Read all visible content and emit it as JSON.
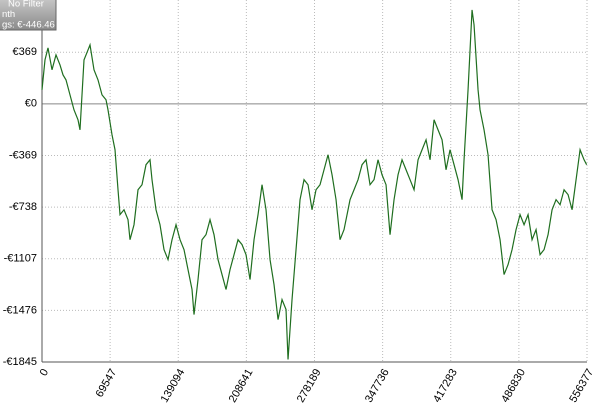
{
  "chart_data": {
    "type": "line",
    "overlay_text": [
      "No Filter",
      "nth",
      "gs: €-446.46"
    ],
    "x": [
      0,
      3063,
      6126,
      10210,
      14294,
      18378,
      21441,
      24504,
      28588,
      32672,
      36756,
      38798,
      42882,
      46966,
      49008,
      53092,
      57176,
      61260,
      65344,
      67386,
      71470,
      74533,
      77596,
      79638,
      83722,
      87806,
      89848,
      93932,
      98016,
      102100,
      106184,
      110268,
      112310,
      116394,
      120478,
      124562,
      128646,
      132730,
      136814,
      140898,
      144982,
      149066,
      153150,
      155192,
      159276,
      163360,
      167444,
      171528,
      175612,
      179696,
      183780,
      187864,
      191948,
      196032,
      200116,
      204200,
      208284,
      212368,
      216452,
      220536,
      224620,
      228704,
      232788,
      236872,
      240956,
      245040,
      249124,
      251166,
      255250,
      259334,
      263418,
      267502,
      271586,
      275670,
      279754,
      283838,
      287922,
      292006,
      296090,
      300174,
      304258,
      308342,
      312426,
      314468,
      318552,
      322636,
      326720,
      330804,
      334888,
      338972,
      343056,
      347140,
      351224,
      355308,
      359392,
      363476,
      367560,
      371644,
      375728,
      379812,
      383896,
      387980,
      392064,
      396148,
      400232,
      404316,
      408400,
      412484,
      416568,
      420652,
      424736,
      428820,
      430862,
      434946,
      439030,
      441072,
      445156,
      447198,
      451282,
      455366,
      459450,
      463534,
      467618,
      471702,
      475786,
      479870,
      483954,
      488038,
      492122,
      496206,
      500290,
      504374,
      508458,
      512542,
      516626,
      520710,
      524794,
      528878,
      532962,
      537046,
      541130,
      545214,
      549298,
      553382,
      556000
    ],
    "series": [
      {
        "color": "#1f6e1f",
        "values": [
          100,
          314,
          400,
          243,
          350,
          278,
          207,
          171,
          64,
          -43,
          -114,
          -186,
          314,
          385,
          421,
          243,
          171,
          64,
          29,
          -43,
          -221,
          -328,
          -614,
          -792,
          -757,
          -828,
          -971,
          -864,
          -614,
          -578,
          -435,
          -400,
          -542,
          -757,
          -864,
          -1042,
          -1113,
          -971,
          -864,
          -971,
          -1042,
          -1185,
          -1327,
          -1506,
          -1256,
          -971,
          -935,
          -828,
          -935,
          -1113,
          -1220,
          -1327,
          -1185,
          -1078,
          -971,
          -1006,
          -1078,
          -1256,
          -971,
          -792,
          -578,
          -757,
          -1113,
          -1292,
          -1542,
          -1399,
          -1470,
          -1827,
          -1399,
          -1042,
          -685,
          -542,
          -578,
          -757,
          -614,
          -578,
          -471,
          -364,
          -507,
          -685,
          -971,
          -899,
          -757,
          -685,
          -614,
          -542,
          -435,
          -400,
          -578,
          -542,
          -400,
          -507,
          -578,
          -935,
          -685,
          -507,
          -400,
          -471,
          -542,
          -614,
          -400,
          -328,
          -257,
          -400,
          -114,
          -186,
          -257,
          -471,
          -328,
          -435,
          -542,
          -685,
          -400,
          100,
          671,
          564,
          100,
          -43,
          -186,
          -364,
          -757,
          -828,
          -971,
          -1220,
          -1149,
          -1042,
          -899,
          -792,
          -864,
          -792,
          -971,
          -899,
          -1078,
          -1042,
          -935,
          -757,
          -685,
          -721,
          -614,
          -649,
          -757,
          -542,
          -328,
          -400,
          -435
        ]
      }
    ],
    "xlim": [
      0,
      556377
    ],
    "xticks": [
      0,
      69547,
      139094,
      208641,
      278189,
      347736,
      417283,
      486830,
      556377
    ],
    "ylim": [
      -1845,
      742
    ],
    "yticks": [
      {
        "value": 369,
        "label": "€369"
      },
      {
        "value": 0,
        "label": "€0"
      },
      {
        "value": -369,
        "label": "-€369"
      },
      {
        "value": -738,
        "label": "-€738"
      },
      {
        "value": -1107,
        "label": "-€1107"
      },
      {
        "value": -1476,
        "label": "-€1476"
      },
      {
        "value": -1845,
        "label": "-€1845"
      }
    ],
    "grid": true
  }
}
